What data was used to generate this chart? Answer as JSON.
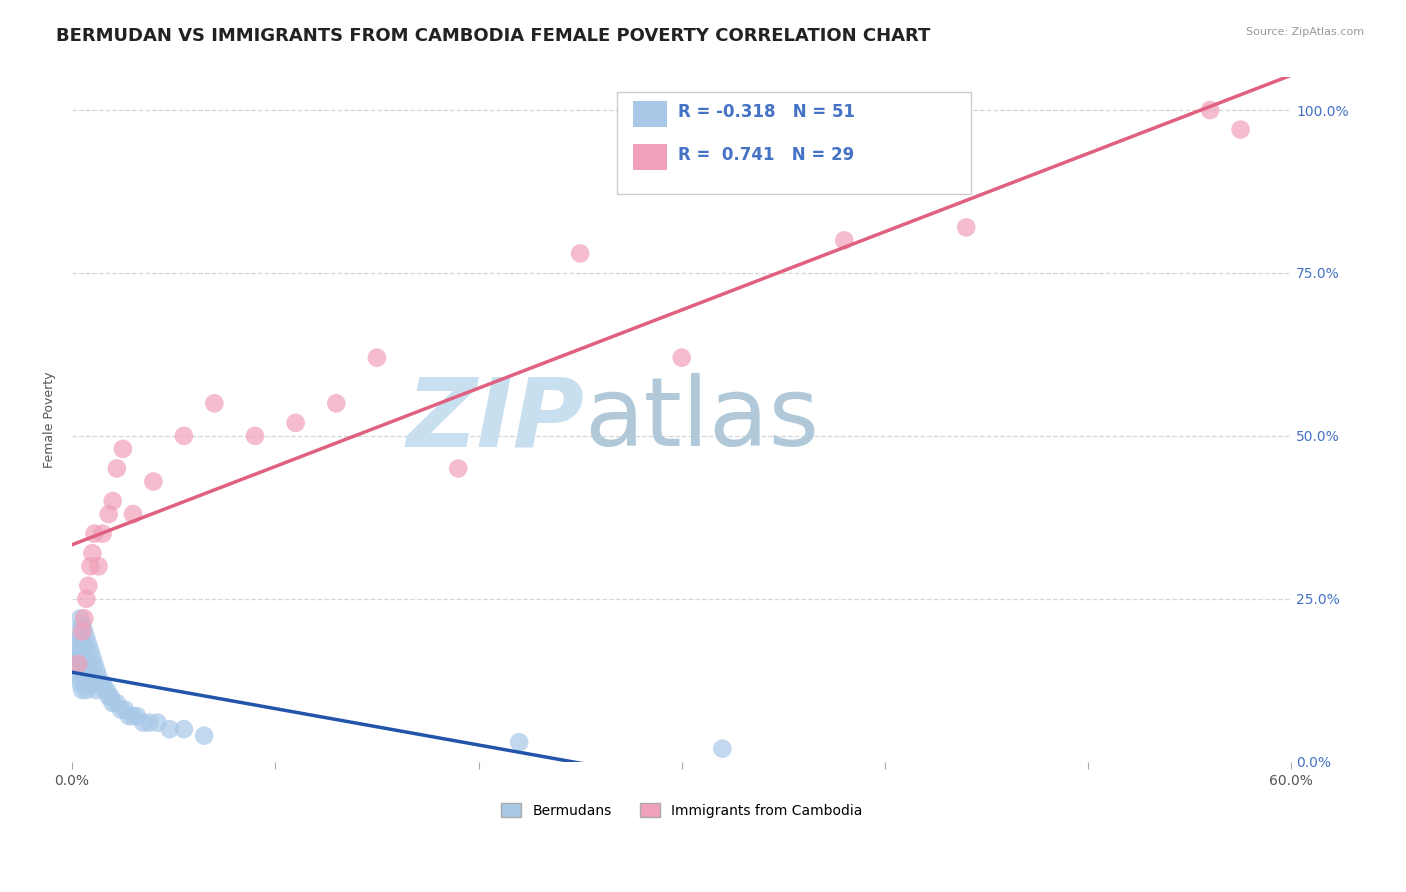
{
  "title": "BERMUDAN VS IMMIGRANTS FROM CAMBODIA FEMALE POVERTY CORRELATION CHART",
  "source": "Source: ZipAtlas.com",
  "legend_blue_label": "Bermudans",
  "legend_pink_label": "Immigrants from Cambodia",
  "R_blue": -0.318,
  "N_blue": 51,
  "R_pink": 0.741,
  "N_pink": 29,
  "blue_color": "#a8c8e8",
  "pink_color": "#f0a0b8",
  "blue_line_color": "#2255aa",
  "pink_line_color": "#e06080",
  "watermark_zip": "ZIP",
  "watermark_atlas": "atlas",
  "blue_points_x": [
    0.001,
    0.002,
    0.002,
    0.003,
    0.003,
    0.003,
    0.004,
    0.004,
    0.004,
    0.004,
    0.005,
    0.005,
    0.005,
    0.005,
    0.006,
    0.006,
    0.006,
    0.007,
    0.007,
    0.007,
    0.008,
    0.008,
    0.009,
    0.009,
    0.01,
    0.01,
    0.011,
    0.012,
    0.012,
    0.013,
    0.014,
    0.015,
    0.016,
    0.017,
    0.018,
    0.019,
    0.02,
    0.022,
    0.024,
    0.026,
    0.028,
    0.03,
    0.032,
    0.035,
    0.038,
    0.042,
    0.048,
    0.055,
    0.065,
    0.22,
    0.32
  ],
  "blue_points_y": [
    0.16,
    0.18,
    0.14,
    0.2,
    0.17,
    0.13,
    0.22,
    0.19,
    0.16,
    0.12,
    0.21,
    0.18,
    0.15,
    0.11,
    0.2,
    0.17,
    0.13,
    0.19,
    0.15,
    0.11,
    0.18,
    0.14,
    0.17,
    0.13,
    0.16,
    0.12,
    0.15,
    0.14,
    0.11,
    0.13,
    0.12,
    0.12,
    0.11,
    0.11,
    0.1,
    0.1,
    0.09,
    0.09,
    0.08,
    0.08,
    0.07,
    0.07,
    0.07,
    0.06,
    0.06,
    0.06,
    0.05,
    0.05,
    0.04,
    0.03,
    0.02
  ],
  "pink_points_x": [
    0.003,
    0.005,
    0.006,
    0.007,
    0.008,
    0.009,
    0.01,
    0.011,
    0.013,
    0.015,
    0.018,
    0.02,
    0.022,
    0.025,
    0.03,
    0.04,
    0.055,
    0.07,
    0.09,
    0.11,
    0.13,
    0.15,
    0.19,
    0.25,
    0.3,
    0.38,
    0.44,
    0.56,
    0.575
  ],
  "pink_points_y": [
    0.15,
    0.2,
    0.22,
    0.25,
    0.27,
    0.3,
    0.32,
    0.35,
    0.3,
    0.35,
    0.38,
    0.4,
    0.45,
    0.48,
    0.38,
    0.43,
    0.5,
    0.55,
    0.5,
    0.52,
    0.55,
    0.62,
    0.45,
    0.78,
    0.62,
    0.8,
    0.82,
    1.0,
    0.97
  ],
  "xmin": 0.0,
  "xmax": 0.6,
  "ymin": 0.0,
  "ymax": 1.05,
  "grid_color": "#cccccc",
  "background_color": "#ffffff",
  "title_fontsize": 13,
  "axis_label_fontsize": 9,
  "tick_fontsize": 10,
  "legend_fontsize": 12,
  "watermark_color": "#c8dff0",
  "watermark_atlas_color": "#b0c8d8",
  "watermark_fontsize": 70
}
